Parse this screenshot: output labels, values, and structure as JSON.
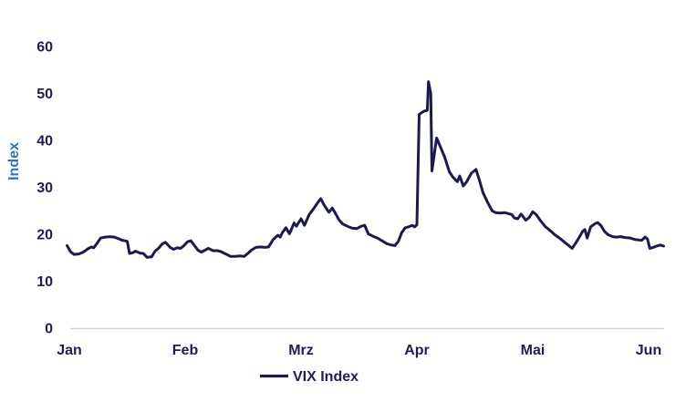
{
  "chart_data": {
    "type": "line",
    "title": "",
    "xlabel": "",
    "ylabel": "Index",
    "x_unit": "months (0 = Jan tick, 5 = Jun tick)",
    "xticklabels": [
      "Jan",
      "Feb",
      "Mrz",
      "Apr",
      "Mai",
      "Jun"
    ],
    "yticks": [
      0,
      10,
      20,
      30,
      40,
      50,
      60
    ],
    "ylim": [
      0,
      60
    ],
    "xlim": [
      -0.05,
      5.15
    ],
    "grid": false,
    "legend_position": "bottom-center",
    "colors": {
      "line": "#1b1b4b",
      "tick_text": "#1f1f4e",
      "axis_line": "#c9d5ea",
      "ylabel_text": "#2e75b6"
    },
    "series": [
      {
        "name": "VIX Index",
        "points": [
          [
            -0.02,
            17.6
          ],
          [
            0.01,
            16.3
          ],
          [
            0.04,
            15.7
          ],
          [
            0.08,
            15.8
          ],
          [
            0.12,
            16.2
          ],
          [
            0.16,
            16.9
          ],
          [
            0.19,
            17.3
          ],
          [
            0.21,
            17.1
          ],
          [
            0.24,
            18.1
          ],
          [
            0.27,
            19.2
          ],
          [
            0.31,
            19.4
          ],
          [
            0.35,
            19.5
          ],
          [
            0.39,
            19.4
          ],
          [
            0.43,
            19.0
          ],
          [
            0.46,
            18.7
          ],
          [
            0.5,
            18.5
          ],
          [
            0.52,
            15.9
          ],
          [
            0.55,
            16.1
          ],
          [
            0.57,
            16.4
          ],
          [
            0.61,
            16.0
          ],
          [
            0.64,
            15.9
          ],
          [
            0.67,
            15.1
          ],
          [
            0.71,
            15.2
          ],
          [
            0.74,
            16.4
          ],
          [
            0.77,
            17.0
          ],
          [
            0.8,
            17.9
          ],
          [
            0.83,
            18.3
          ],
          [
            0.87,
            17.2
          ],
          [
            0.9,
            16.8
          ],
          [
            0.93,
            17.1
          ],
          [
            0.96,
            17.0
          ],
          [
            0.99,
            17.6
          ],
          [
            1.02,
            18.4
          ],
          [
            1.05,
            18.6
          ],
          [
            1.08,
            17.6
          ],
          [
            1.11,
            16.6
          ],
          [
            1.14,
            16.2
          ],
          [
            1.17,
            16.6
          ],
          [
            1.2,
            17.0
          ],
          [
            1.24,
            16.5
          ],
          [
            1.28,
            16.5
          ],
          [
            1.31,
            16.3
          ],
          [
            1.35,
            15.8
          ],
          [
            1.39,
            15.3
          ],
          [
            1.43,
            15.3
          ],
          [
            1.47,
            15.4
          ],
          [
            1.51,
            15.3
          ],
          [
            1.54,
            15.9
          ],
          [
            1.57,
            16.6
          ],
          [
            1.61,
            17.2
          ],
          [
            1.65,
            17.3
          ],
          [
            1.69,
            17.2
          ],
          [
            1.72,
            17.3
          ],
          [
            1.76,
            18.9
          ],
          [
            1.8,
            19.8
          ],
          [
            1.82,
            19.4
          ],
          [
            1.84,
            20.4
          ],
          [
            1.87,
            21.4
          ],
          [
            1.9,
            20.1
          ],
          [
            1.94,
            22.4
          ],
          [
            1.96,
            21.7
          ],
          [
            2.0,
            23.3
          ],
          [
            2.03,
            21.9
          ],
          [
            2.07,
            24.2
          ],
          [
            2.11,
            25.5
          ],
          [
            2.14,
            26.6
          ],
          [
            2.17,
            27.6
          ],
          [
            2.2,
            26.2
          ],
          [
            2.24,
            24.7
          ],
          [
            2.27,
            25.6
          ],
          [
            2.3,
            24.3
          ],
          [
            2.33,
            23.0
          ],
          [
            2.36,
            22.2
          ],
          [
            2.4,
            21.7
          ],
          [
            2.44,
            21.3
          ],
          [
            2.48,
            21.2
          ],
          [
            2.52,
            21.7
          ],
          [
            2.55,
            21.9
          ],
          [
            2.58,
            20.1
          ],
          [
            2.62,
            19.6
          ],
          [
            2.66,
            19.2
          ],
          [
            2.7,
            18.6
          ],
          [
            2.74,
            18.0
          ],
          [
            2.78,
            17.7
          ],
          [
            2.81,
            17.6
          ],
          [
            2.84,
            18.5
          ],
          [
            2.87,
            20.4
          ],
          [
            2.9,
            21.4
          ],
          [
            2.93,
            21.6
          ],
          [
            2.96,
            21.9
          ],
          [
            2.98,
            21.6
          ],
          [
            3.0,
            22.0
          ],
          [
            3.02,
            45.5
          ],
          [
            3.04,
            45.9
          ],
          [
            3.06,
            46.2
          ],
          [
            3.09,
            46.4
          ],
          [
            3.1,
            52.5
          ],
          [
            3.12,
            50.0
          ],
          [
            3.13,
            33.5
          ],
          [
            3.17,
            40.5
          ],
          [
            3.2,
            38.8
          ],
          [
            3.24,
            36.4
          ],
          [
            3.28,
            33.3
          ],
          [
            3.31,
            32.2
          ],
          [
            3.35,
            31.2
          ],
          [
            3.37,
            32.4
          ],
          [
            3.4,
            30.3
          ],
          [
            3.43,
            31.2
          ],
          [
            3.47,
            33.0
          ],
          [
            3.51,
            33.8
          ],
          [
            3.54,
            31.5
          ],
          [
            3.57,
            28.9
          ],
          [
            3.61,
            26.8
          ],
          [
            3.65,
            25.0
          ],
          [
            3.68,
            24.6
          ],
          [
            3.72,
            24.5
          ],
          [
            3.76,
            24.6
          ],
          [
            3.79,
            24.4
          ],
          [
            3.82,
            24.2
          ],
          [
            3.84,
            23.5
          ],
          [
            3.87,
            23.3
          ],
          [
            3.9,
            24.3
          ],
          [
            3.94,
            23.0
          ],
          [
            3.97,
            23.6
          ],
          [
            4.0,
            24.8
          ],
          [
            4.03,
            24.2
          ],
          [
            4.07,
            22.8
          ],
          [
            4.11,
            21.6
          ],
          [
            4.15,
            20.8
          ],
          [
            4.19,
            19.9
          ],
          [
            4.23,
            19.2
          ],
          [
            4.27,
            18.4
          ],
          [
            4.31,
            17.6
          ],
          [
            4.34,
            17.0
          ],
          [
            4.37,
            18.1
          ],
          [
            4.4,
            19.3
          ],
          [
            4.43,
            20.6
          ],
          [
            4.45,
            21.0
          ],
          [
            4.47,
            19.2
          ],
          [
            4.5,
            21.6
          ],
          [
            4.54,
            22.3
          ],
          [
            4.56,
            22.5
          ],
          [
            4.59,
            21.8
          ],
          [
            4.62,
            20.6
          ],
          [
            4.65,
            19.9
          ],
          [
            4.69,
            19.5
          ],
          [
            4.72,
            19.4
          ],
          [
            4.76,
            19.5
          ],
          [
            4.8,
            19.3
          ],
          [
            4.84,
            19.2
          ],
          [
            4.88,
            18.9
          ],
          [
            4.91,
            18.8
          ],
          [
            4.94,
            18.7
          ],
          [
            4.97,
            19.4
          ],
          [
            4.99,
            19.0
          ],
          [
            5.01,
            17.0
          ],
          [
            5.04,
            17.2
          ],
          [
            5.07,
            17.5
          ],
          [
            5.1,
            17.7
          ],
          [
            5.13,
            17.5
          ]
        ]
      }
    ]
  }
}
